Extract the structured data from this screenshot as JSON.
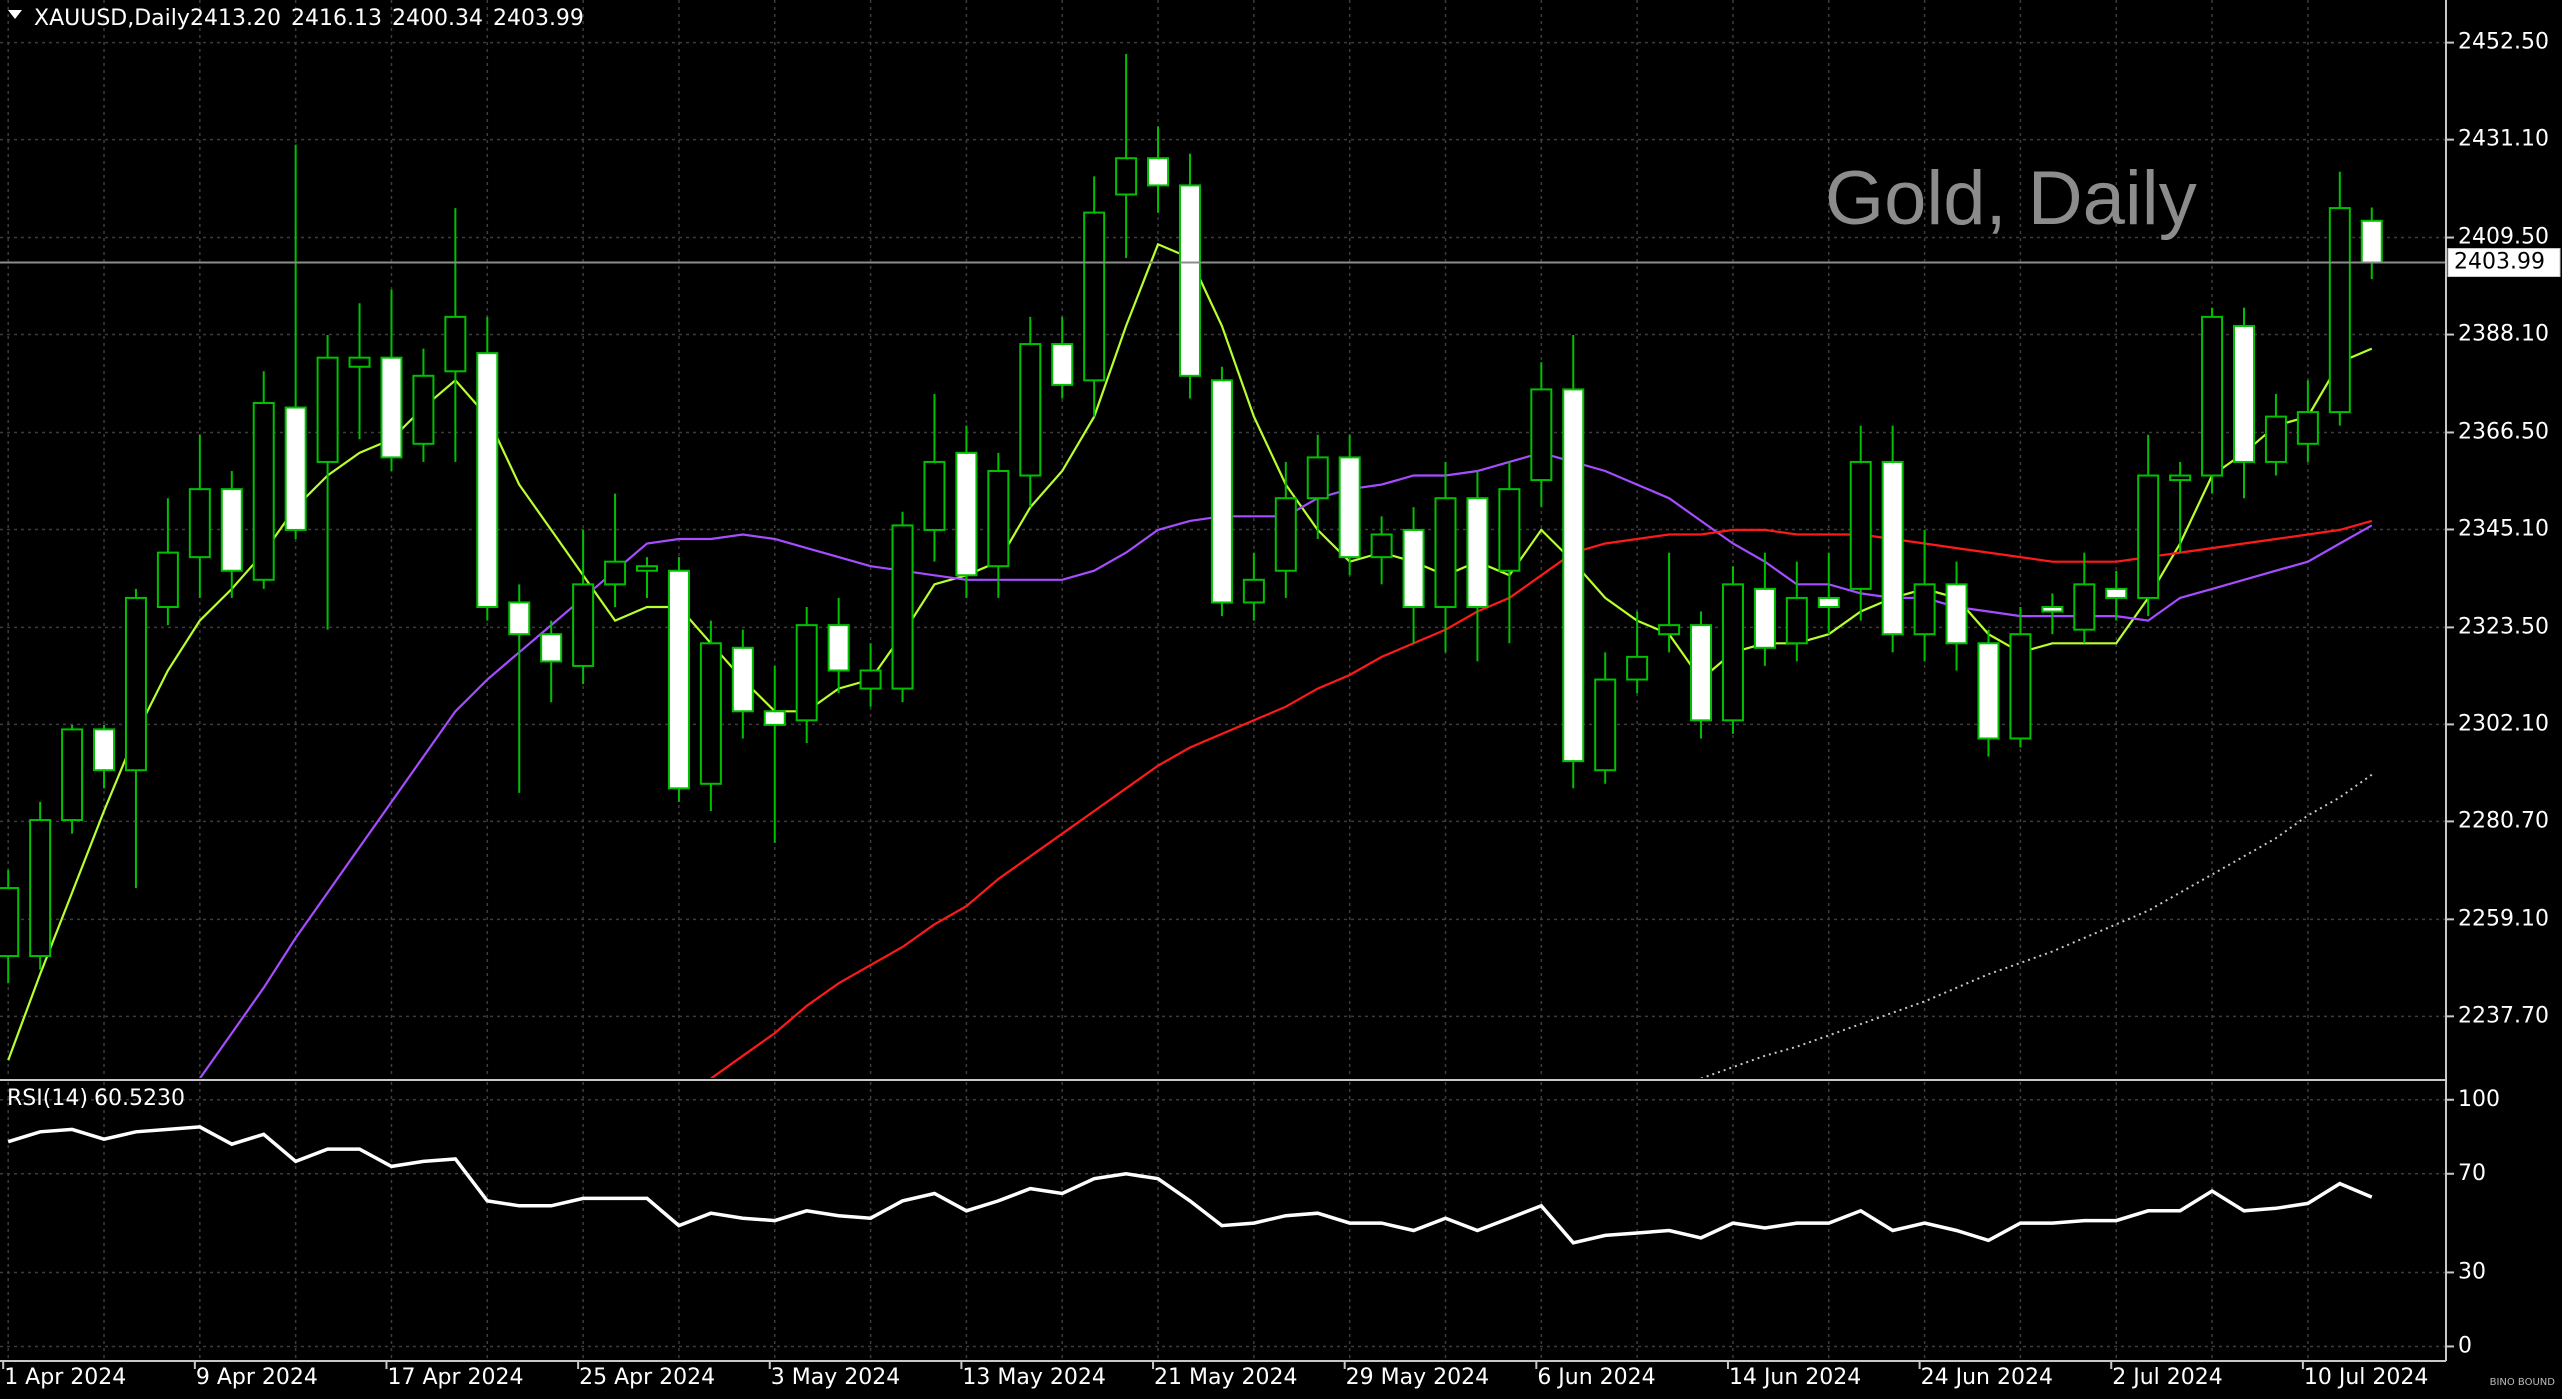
{
  "chart_data": {
    "type": "candlestick",
    "title": "XAUUSD,Daily",
    "ohlc_labels": [
      "2413.20",
      "2416.13",
      "2400.34",
      "2403.99"
    ],
    "watermark": "Gold, Daily",
    "logo": "BINO BOUND",
    "categories": [
      "1 Apr 2024",
      null,
      null,
      null,
      null,
      null,
      "9 Apr 2024",
      null,
      null,
      null,
      null,
      null,
      "17 Apr 2024",
      null,
      null,
      null,
      null,
      null,
      "25 Apr 2024",
      null,
      null,
      null,
      null,
      null,
      "3 May 2024",
      null,
      null,
      null,
      null,
      null,
      "13 May 2024",
      null,
      null,
      null,
      null,
      null,
      "21 May 2024",
      null,
      null,
      null,
      null,
      null,
      "29 May 2024",
      null,
      null,
      null,
      null,
      null,
      "6 Jun 2024",
      null,
      null,
      null,
      null,
      null,
      "14 Jun 2024",
      null,
      null,
      null,
      null,
      null,
      "24 Jun 2024",
      null,
      null,
      null,
      null,
      null,
      "2 Jul 2024",
      null,
      null,
      null,
      null,
      null,
      "10 Jul 2024",
      null,
      null
    ],
    "open": [
      2251,
      2251,
      2281,
      2301,
      2292,
      2328,
      2339,
      2354,
      2334,
      2372,
      2360,
      2381,
      2383,
      2364,
      2380,
      2384,
      2329,
      2322,
      2315,
      2333,
      2336,
      2336,
      2289,
      2319,
      2305,
      2303,
      2324,
      2310,
      2310,
      2345,
      2362,
      2337,
      2357,
      2386,
      2378,
      2419,
      2427,
      2421,
      2378,
      2329,
      2336,
      2352,
      2361,
      2339,
      2345,
      2328,
      2352,
      2336,
      2356,
      2376,
      2292,
      2312,
      2322,
      2324,
      2303,
      2332,
      2320,
      2330,
      2332,
      2360,
      2322,
      2333,
      2320,
      2299,
      2328,
      2323,
      2332,
      2330,
      2356,
      2357,
      2390,
      2360,
      2364,
      2371,
      2413.2
    ],
    "high": [
      2270,
      2285,
      2302,
      2302,
      2332,
      2352,
      2366,
      2358,
      2380,
      2430,
      2388,
      2395,
      2398,
      2385,
      2416,
      2392,
      2333,
      2325,
      2345,
      2353,
      2339,
      2339,
      2325,
      2323,
      2315,
      2328,
      2330,
      2320,
      2349,
      2375,
      2368,
      2362,
      2392,
      2392,
      2423,
      2450,
      2434,
      2428,
      2381,
      2340,
      2360,
      2366,
      2366,
      2348,
      2350,
      2360,
      2358,
      2360,
      2382,
      2388,
      2318,
      2327,
      2340,
      2327,
      2337,
      2340,
      2338,
      2340,
      2368,
      2368,
      2345,
      2338,
      2323,
      2328,
      2331,
      2340,
      2336,
      2366,
      2360,
      2394,
      2394,
      2375,
      2378,
      2424,
      2416.13
    ],
    "low": [
      2245,
      2248,
      2278,
      2288,
      2266,
      2324,
      2330,
      2330,
      2332,
      2343,
      2323,
      2365,
      2358,
      2360,
      2360,
      2325,
      2287,
      2307,
      2311,
      2328,
      2330,
      2285,
      2283,
      2299,
      2276,
      2298,
      2309,
      2306,
      2307,
      2338,
      2330,
      2330,
      2350,
      2374,
      2370,
      2405,
      2415,
      2374,
      2326,
      2325,
      2330,
      2343,
      2335,
      2333,
      2320,
      2318,
      2316,
      2320,
      2350,
      2288,
      2289,
      2309,
      2318,
      2299,
      2300,
      2315,
      2316,
      2322,
      2325,
      2318,
      2316,
      2314,
      2295,
      2297,
      2322,
      2320,
      2325,
      2326,
      2340,
      2353,
      2352,
      2357,
      2360,
      2368,
      2400.34
    ],
    "close": [
      2266,
      2281,
      2301,
      2292,
      2330,
      2340,
      2354,
      2336,
      2373,
      2345,
      2383,
      2383,
      2361,
      2379,
      2392,
      2328,
      2322,
      2316,
      2333,
      2338,
      2337,
      2288,
      2320,
      2305,
      2302,
      2324,
      2314,
      2314,
      2346,
      2360,
      2335,
      2358,
      2386,
      2377,
      2415,
      2427,
      2421,
      2379,
      2329,
      2334,
      2352,
      2361,
      2339,
      2344,
      2328,
      2352,
      2328,
      2354,
      2376,
      2294,
      2312,
      2317,
      2324,
      2303,
      2333,
      2319,
      2330,
      2328,
      2360,
      2322,
      2333,
      2320,
      2299,
      2322,
      2327,
      2333,
      2330,
      2357,
      2357,
      2392,
      2360,
      2370,
      2371,
      2416,
      2403.99
    ],
    "up_color": "#000000",
    "down_color": "#ffffff",
    "wick_color": "#00c000",
    "series": [
      {
        "color": "#b8ff2e",
        "style": "solid",
        "values": [
          2228,
          2247,
          2265,
          2283,
          2300,
          2314,
          2325,
          2332,
          2340,
          2350,
          2357,
          2362,
          2365,
          2372,
          2378,
          2370,
          2355,
          2345,
          2335,
          2325,
          2328,
          2328,
          2320,
          2312,
          2305,
          2305,
          2310,
          2312,
          2322,
          2333,
          2335,
          2338,
          2350,
          2358,
          2370,
          2390,
          2408,
          2405,
          2390,
          2370,
          2355,
          2345,
          2338,
          2340,
          2338,
          2335,
          2338,
          2335,
          2345,
          2338,
          2330,
          2325,
          2322,
          2312,
          2318,
          2320,
          2320,
          2322,
          2327,
          2330,
          2332,
          2330,
          2322,
          2318,
          2320,
          2320,
          2320,
          2330,
          2342,
          2357,
          2362,
          2368,
          2370,
          2382,
          2385
        ]
      },
      {
        "color": "#a64dff",
        "style": "solid",
        "values": [
          null,
          null,
          null,
          null,
          null,
          null,
          2224,
          2234,
          2244,
          2255,
          2265,
          2275,
          2285,
          2295,
          2305,
          2312,
          2318,
          2324,
          2330,
          2336,
          2342,
          2343,
          2343,
          2344,
          2343,
          2341,
          2339,
          2337,
          2336,
          2335,
          2334,
          2334,
          2334,
          2334,
          2336,
          2340,
          2345,
          2347,
          2348,
          2348,
          2348,
          2352,
          2354,
          2355,
          2357,
          2357,
          2358,
          2360,
          2362,
          2360,
          2358,
          2355,
          2352,
          2347,
          2342,
          2338,
          2333,
          2333,
          2331,
          2330,
          2330,
          2328,
          2327,
          2326,
          2326,
          2326,
          2326,
          2325,
          2330,
          2332,
          2334,
          2336,
          2338,
          2342,
          2346
        ]
      },
      {
        "color": "#ff1a1a",
        "style": "solid",
        "values": [
          null,
          null,
          null,
          null,
          null,
          null,
          null,
          null,
          null,
          null,
          null,
          null,
          null,
          null,
          null,
          null,
          null,
          null,
          null,
          null,
          null,
          null,
          2224,
          2229,
          2234,
          2240,
          2245,
          2249,
          2253,
          2258,
          2262,
          2268,
          2273,
          2278,
          2283,
          2288,
          2293,
          2297,
          2300,
          2303,
          2306,
          2310,
          2313,
          2317,
          2320,
          2323,
          2327,
          2330,
          2335,
          2340,
          2342,
          2343,
          2344,
          2344,
          2345,
          2345,
          2344,
          2344,
          2344,
          2343,
          2342,
          2341,
          2340,
          2339,
          2338,
          2338,
          2338,
          2339,
          2340,
          2341,
          2342,
          2343,
          2344,
          2345,
          2347
        ]
      },
      {
        "color": "#c8c8c8",
        "style": "dotted",
        "values": [
          null,
          null,
          null,
          null,
          null,
          null,
          null,
          null,
          null,
          null,
          null,
          null,
          null,
          null,
          null,
          null,
          null,
          null,
          null,
          null,
          null,
          null,
          null,
          null,
          null,
          null,
          null,
          null,
          null,
          null,
          null,
          null,
          null,
          null,
          null,
          null,
          null,
          null,
          null,
          null,
          null,
          null,
          null,
          null,
          null,
          null,
          null,
          null,
          null,
          null,
          null,
          null,
          null,
          2224,
          2226.5,
          2229,
          2231,
          2233.5,
          2236,
          2238.5,
          2241,
          2244,
          2247,
          2249.5,
          2252,
          2255,
          2258,
          2261,
          2265,
          2269,
          2273,
          2277,
          2282,
          2286,
          2291
        ]
      }
    ],
    "ylim": [
      2224.1,
      2461.9
    ],
    "yticks": [
      {
        "value": 2452.5,
        "label": "2452.50"
      },
      {
        "value": 2431.1,
        "label": "2431.10"
      },
      {
        "value": 2409.5,
        "label": "2409.50"
      },
      {
        "value": 2388.1,
        "label": "2388.10"
      },
      {
        "value": 2366.5,
        "label": "2366.50"
      },
      {
        "value": 2345.1,
        "label": "2345.10"
      },
      {
        "value": 2323.5,
        "label": "2323.50"
      },
      {
        "value": 2302.1,
        "label": "2302.10"
      },
      {
        "value": 2280.7,
        "label": "2280.70"
      },
      {
        "value": 2259.1,
        "label": "2259.10"
      },
      {
        "value": 2237.7,
        "label": "2237.70"
      }
    ],
    "last_price_label": "2403.99",
    "grid": true,
    "rsi": {
      "title": "RSI(14)",
      "value_label": "60.5230",
      "color": "#ffffff",
      "values": [
        83,
        87,
        88,
        84,
        87,
        88,
        89,
        82,
        86,
        75,
        80,
        80,
        73,
        75,
        76,
        59,
        57,
        57,
        60,
        60,
        60,
        49,
        54,
        52,
        51,
        55,
        53,
        52,
        59,
        62,
        55,
        59,
        64,
        62,
        68,
        70,
        68,
        59,
        49,
        50,
        53,
        54,
        50,
        50,
        47,
        52,
        47,
        52,
        57,
        42,
        45,
        46,
        47,
        44,
        50,
        48,
        50,
        50,
        55,
        47,
        50,
        47,
        43,
        50,
        50,
        51,
        51,
        55,
        55,
        63,
        55,
        56,
        58,
        66,
        60.523
      ],
      "ylim": [
        -5.9,
        107.2
      ],
      "yticks": [
        100,
        70,
        30,
        0
      ]
    }
  }
}
